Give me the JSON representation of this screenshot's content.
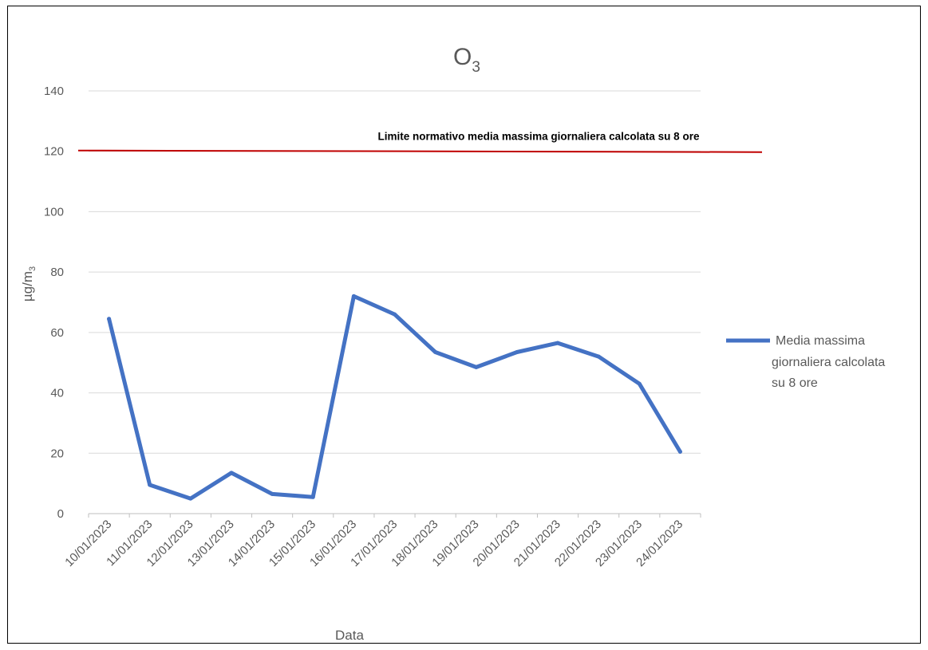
{
  "chart_data": {
    "type": "line",
    "title": "O",
    "title_subscript": "3",
    "xlabel": "Data",
    "ylabel": "µg/m",
    "ylabel_subscript": "3",
    "ylim": [
      0,
      140
    ],
    "yticks": [
      0,
      20,
      40,
      60,
      80,
      100,
      120,
      140
    ],
    "grid": true,
    "legend_position": "right",
    "categories": [
      "10/01/2023",
      "11/01/2023",
      "12/01/2023",
      "13/01/2023",
      "14/01/2023",
      "15/01/2023",
      "16/01/2023",
      "17/01/2023",
      "18/01/2023",
      "19/01/2023",
      "20/01/2023",
      "21/01/2023",
      "22/01/2023",
      "23/01/2023",
      "24/01/2023"
    ],
    "series": [
      {
        "name": "Media massima giornaliera calcolata su 8 ore",
        "legend_lines": [
          "Media massima",
          "giornaliera calcolata",
          "su 8 ore"
        ],
        "color": "#4472C4",
        "values": [
          64.5,
          9.5,
          5,
          13.5,
          6.5,
          5.5,
          72,
          66,
          53.5,
          48.5,
          53.5,
          56.5,
          52,
          43,
          20.5
        ]
      }
    ],
    "reference_line": {
      "value": 120,
      "color": "#C00000",
      "label": "Limite normativo media massima giornaliera calcolata su 8 ore"
    }
  }
}
